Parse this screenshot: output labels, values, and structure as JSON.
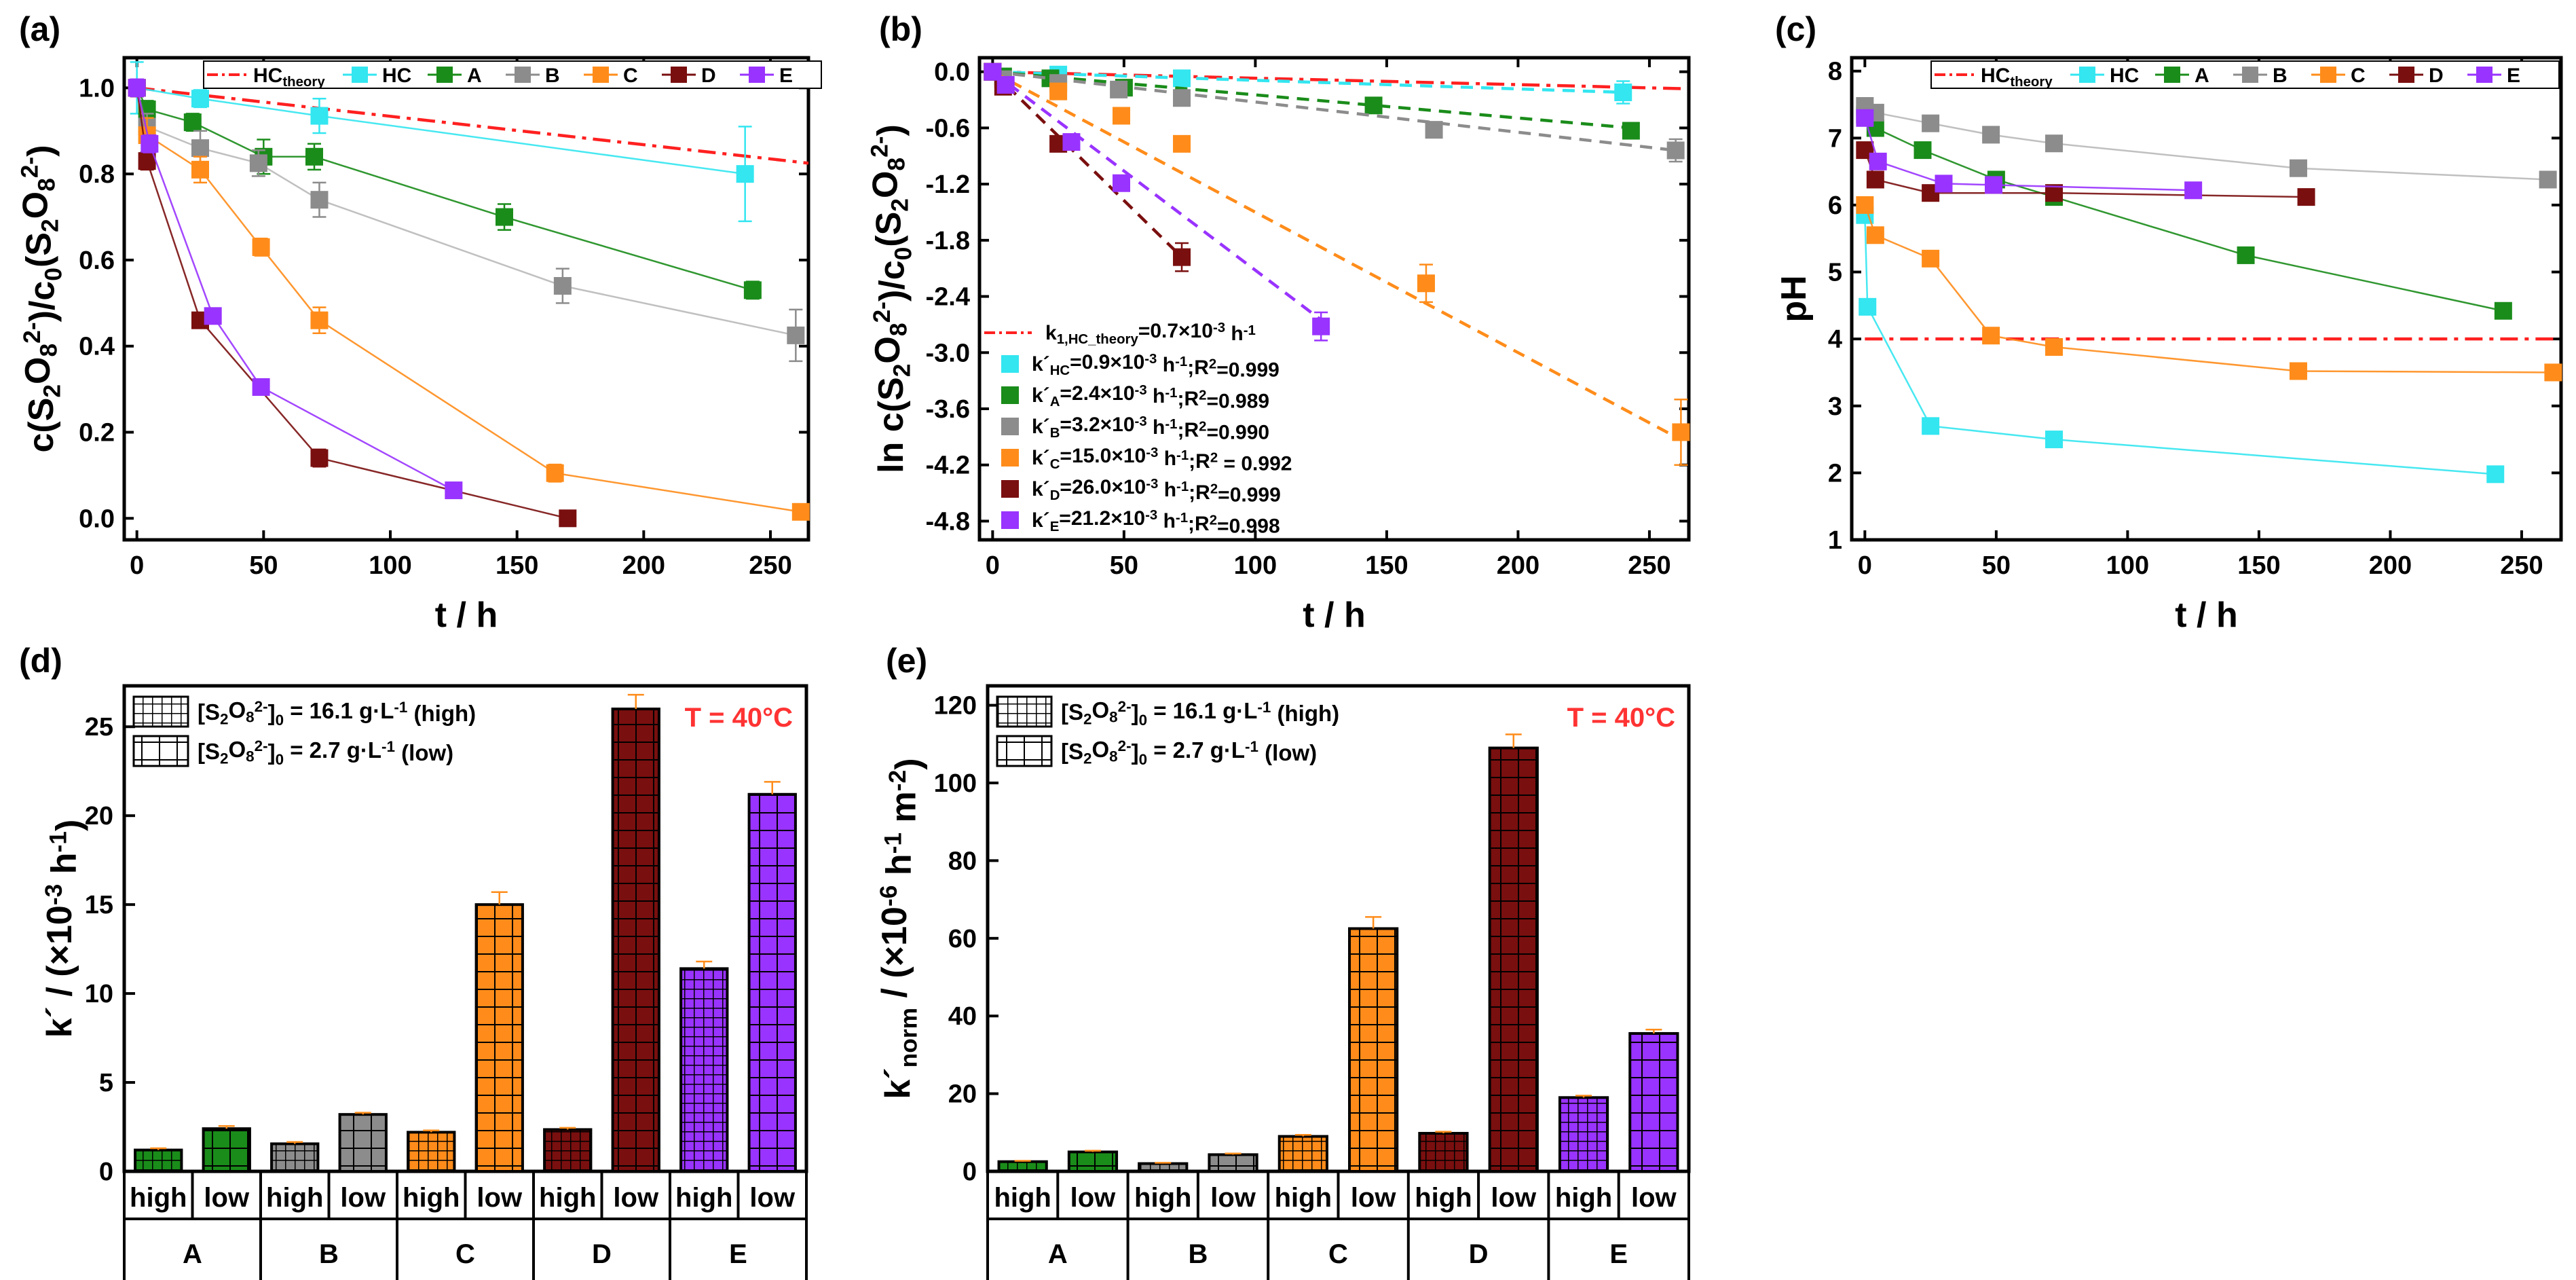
{
  "figure": {
    "panel_labels": [
      "(a)",
      "(b)",
      "(c)",
      "(d)",
      "(e)"
    ],
    "colors": {
      "HC": "#33e6f0",
      "A": "#1a8c1a",
      "B": "#8c8c8c",
      "C": "#ff8c1a",
      "D": "#7a0f0f",
      "E": "#9933ff",
      "theory": "#ff2020"
    }
  },
  "chart_data": [
    {
      "type": "line",
      "panel": "(a)",
      "title": "",
      "xlabel": "t / h",
      "ylabel": "c(S2O8 2-)/c0(S2O8 2-)",
      "xlim": [
        -5,
        265
      ],
      "ylim": [
        -0.05,
        1.07
      ],
      "xticks": [
        0,
        50,
        100,
        150,
        200,
        250
      ],
      "yticks": [
        0.0,
        0.2,
        0.4,
        0.6,
        0.8,
        1.0
      ],
      "ytick_labels": [
        "0.0",
        "0.2",
        "0.4",
        "0.6",
        "0.8",
        "1.0"
      ],
      "legend": [
        "HC_theory",
        "HC",
        "A",
        "B",
        "C",
        "D",
        "E"
      ],
      "series": [
        {
          "name": "HC_theory",
          "style": "dashdot",
          "x": [
            0,
            265
          ],
          "y": [
            1.0,
            0.825
          ]
        },
        {
          "name": "HC",
          "x": [
            0,
            25,
            72,
            240
          ],
          "y": [
            1.0,
            0.975,
            0.935,
            0.8
          ],
          "err": [
            0.06,
            0.02,
            0.04,
            0.11
          ]
        },
        {
          "name": "A",
          "x": [
            0,
            4,
            22,
            50,
            70,
            145,
            243
          ],
          "y": [
            1.0,
            0.95,
            0.92,
            0.84,
            0.84,
            0.7,
            0.53
          ],
          "err": [
            0.02,
            0.02,
            0.02,
            0.04,
            0.03,
            0.03,
            0.02
          ]
        },
        {
          "name": "B",
          "x": [
            0,
            4,
            25,
            48,
            72,
            168,
            260
          ],
          "y": [
            1.0,
            0.91,
            0.86,
            0.825,
            0.74,
            0.54,
            0.425
          ],
          "err": [
            0.02,
            0.03,
            0.04,
            0.03,
            0.04,
            0.04,
            0.06
          ]
        },
        {
          "name": "C",
          "x": [
            0,
            4,
            25,
            49,
            72,
            165,
            262
          ],
          "y": [
            1.0,
            0.89,
            0.81,
            0.63,
            0.46,
            0.105,
            0.015
          ],
          "err": [
            0.02,
            0.04,
            0.03,
            0.02,
            0.03,
            0.02,
            0.01
          ]
        },
        {
          "name": "D",
          "x": [
            0,
            4,
            25,
            72,
            170
          ],
          "y": [
            1.0,
            0.83,
            0.46,
            0.14,
            0.0
          ],
          "err": [
            0.02,
            0.02,
            0.01,
            0.02,
            0.01
          ]
        },
        {
          "name": "E",
          "x": [
            0,
            5,
            30,
            49,
            125
          ],
          "y": [
            1.0,
            0.87,
            0.47,
            0.305,
            0.065
          ],
          "err": [
            0.02,
            0.02,
            0.01,
            0.01,
            0.01
          ]
        }
      ]
    },
    {
      "type": "line",
      "panel": "(b)",
      "title": "",
      "xlabel": "t / h",
      "ylabel": "ln c(S2O8 2-)/c0(S2O8 2-)",
      "xlim": [
        -5,
        265
      ],
      "ylim": [
        -5.0,
        0.15
      ],
      "xticks": [
        0,
        50,
        100,
        150,
        200,
        250
      ],
      "yticks": [
        0.0,
        -0.6,
        -1.2,
        -1.8,
        -2.4,
        -3.0,
        -3.6,
        -4.2,
        -4.8
      ],
      "ytick_labels": [
        "0.0",
        "-0.6",
        "-1.2",
        "-1.8",
        "-2.4",
        "-3.0",
        "-3.6",
        "-4.2",
        "-4.8"
      ],
      "legend": [
        {
          "name": "HC_theory",
          "text": "k1,HC_theory=0.7×10-3 h-1"
        },
        {
          "name": "HC",
          "text": "k´HC=0.9×10-3 h-1;R2=0.999"
        },
        {
          "name": "A",
          "text": "k´A=2.4×10-3 h-1;R2=0.989"
        },
        {
          "name": "B",
          "text": "k´B=3.2×10-3 h-1;R2=0.990"
        },
        {
          "name": "C",
          "text": "k´C=15.0×10-3 h-1;R2 = 0.992"
        },
        {
          "name": "D",
          "text": "k´D=26.0×10-3 h-1;R2=0.999"
        },
        {
          "name": "E",
          "text": "k´E=21.2×10-3 h-1;R2=0.998"
        }
      ],
      "series": [
        {
          "name": "HC_theory",
          "style": "dashdot",
          "x": [
            0,
            262
          ],
          "y": [
            0.0,
            -0.18
          ]
        },
        {
          "name": "HC",
          "x": [
            0,
            25,
            72,
            240
          ],
          "y": [
            0.0,
            -0.03,
            -0.07,
            -0.22
          ],
          "err": [
            0.05,
            0.02,
            0.04,
            0.12
          ],
          "fit": [
            [
              0,
              0.0
            ],
            [
              240,
              -0.22
            ]
          ]
        },
        {
          "name": "A",
          "x": [
            0,
            4,
            22,
            50,
            145,
            243
          ],
          "y": [
            0.0,
            -0.05,
            -0.07,
            -0.17,
            -0.36,
            -0.63
          ],
          "err": [
            0.02,
            0.02,
            0.02,
            0.04,
            0.03,
            0.04
          ],
          "fit": [
            [
              0,
              0.0
            ],
            [
              243,
              -0.6
            ]
          ]
        },
        {
          "name": "B",
          "x": [
            0,
            4,
            25,
            48,
            72,
            168,
            260
          ],
          "y": [
            0.0,
            -0.08,
            -0.12,
            -0.19,
            -0.28,
            -0.62,
            -0.84
          ],
          "err": [
            0.02,
            0.03,
            0.04,
            0.04,
            0.05,
            0.07,
            0.12
          ],
          "fit": [
            [
              0,
              0.0
            ],
            [
              260,
              -0.84
            ]
          ]
        },
        {
          "name": "C",
          "x": [
            0,
            25,
            49,
            72,
            165,
            262
          ],
          "y": [
            0.0,
            -0.21,
            -0.47,
            -0.77,
            -2.26,
            -3.85
          ],
          "err": [
            0.02,
            0.04,
            0.04,
            0.05,
            0.2,
            0.35
          ],
          "fit": [
            [
              0,
              0.0
            ],
            [
              262,
              -3.93
            ]
          ]
        },
        {
          "name": "D",
          "x": [
            0,
            4,
            25,
            72
          ],
          "y": [
            0.0,
            -0.16,
            -0.77,
            -1.98
          ],
          "err": [
            0.02,
            0.03,
            0.03,
            0.15
          ],
          "fit": [
            [
              0,
              0.0
            ],
            [
              72,
              -1.98
            ]
          ]
        },
        {
          "name": "E",
          "x": [
            0,
            5,
            30,
            49,
            125
          ],
          "y": [
            0.0,
            -0.14,
            -0.75,
            -1.19,
            -2.72
          ],
          "err": [
            0.02,
            0.02,
            0.03,
            0.04,
            0.15
          ],
          "fit": [
            [
              0,
              0.0
            ],
            [
              125,
              -2.65
            ]
          ]
        }
      ]
    },
    {
      "type": "line",
      "panel": "(c)",
      "title": "",
      "xlabel": "t / h",
      "ylabel": "pH",
      "xlim": [
        -5,
        265
      ],
      "ylim": [
        1,
        8.2
      ],
      "xticks": [
        0,
        50,
        100,
        150,
        200,
        250
      ],
      "yticks": [
        1,
        2,
        3,
        4,
        5,
        6,
        7,
        8
      ],
      "ytick_labels": [
        "1",
        "2",
        "3",
        "4",
        "5",
        "6",
        "7",
        "8"
      ],
      "legend": [
        "HC_theory",
        "HC",
        "A",
        "B",
        "C",
        "D",
        "E"
      ],
      "series": [
        {
          "name": "HC_theory",
          "style": "dashdot",
          "x": [
            0,
            262
          ],
          "y": [
            4.0,
            4.0
          ]
        },
        {
          "name": "HC",
          "x": [
            0,
            1,
            25,
            72,
            240
          ],
          "y": [
            5.85,
            4.48,
            2.7,
            2.5,
            1.98
          ]
        },
        {
          "name": "A",
          "x": [
            0,
            4,
            22,
            50,
            72,
            145,
            243
          ],
          "y": [
            7.35,
            7.15,
            6.82,
            6.38,
            6.12,
            5.25,
            4.42
          ]
        },
        {
          "name": "B",
          "x": [
            0,
            4,
            25,
            48,
            72,
            165,
            260
          ],
          "y": [
            7.48,
            7.38,
            7.22,
            7.05,
            6.92,
            6.55,
            6.38
          ]
        },
        {
          "name": "C",
          "x": [
            0,
            4,
            25,
            48,
            72,
            165,
            262
          ],
          "y": [
            6.0,
            5.55,
            5.2,
            4.05,
            3.88,
            3.52,
            3.5
          ]
        },
        {
          "name": "D",
          "x": [
            0,
            4,
            25,
            72,
            168
          ],
          "y": [
            6.82,
            6.38,
            6.18,
            6.18,
            6.12
          ]
        },
        {
          "name": "E",
          "x": [
            0,
            5,
            30,
            49,
            125
          ],
          "y": [
            7.3,
            6.65,
            6.32,
            6.3,
            6.22
          ]
        }
      ]
    },
    {
      "type": "bar",
      "panel": "(d)",
      "title": "",
      "annotation": "T = 40°C",
      "xlabel": "",
      "ylabel": "k´ / (×10-3 h-1)",
      "ylim": [
        0,
        27.3
      ],
      "yticks": [
        0,
        5,
        10,
        15,
        20,
        25
      ],
      "ytick_labels": [
        "0",
        "5",
        "10",
        "15",
        "20",
        "25"
      ],
      "categories": [
        "A",
        "B",
        "C",
        "D",
        "E"
      ],
      "subcategories": [
        "high",
        "low"
      ],
      "legend": [
        "[S2O8 2-]0 = 16.1 g·L-1 (high)",
        "[S2O8 2-]0 = 2.7 g·L-1 (low)"
      ],
      "series": [
        {
          "name": "high",
          "values": [
            1.2,
            1.55,
            2.2,
            2.35,
            11.4
          ],
          "err": [
            0.1,
            0.1,
            0.1,
            0.1,
            0.4
          ]
        },
        {
          "name": "low",
          "values": [
            2.4,
            3.2,
            15.0,
            26.0,
            21.2
          ],
          "err": [
            0.15,
            0.1,
            0.7,
            0.8,
            0.7
          ]
        }
      ]
    },
    {
      "type": "bar",
      "panel": "(e)",
      "title": "",
      "annotation": "T = 40°C",
      "xlabel": "",
      "ylabel": "k´norm / (×10-6 h-1 m-2)",
      "ylim": [
        0,
        125
      ],
      "yticks": [
        0,
        20,
        40,
        60,
        80,
        100,
        120
      ],
      "ytick_labels": [
        "0",
        "20",
        "40",
        "60",
        "80",
        "100",
        "120"
      ],
      "categories": [
        "A",
        "B",
        "C",
        "D",
        "E"
      ],
      "subcategories": [
        "high",
        "low"
      ],
      "legend": [
        "[S2O8 2-]0 = 16.1 g·L-1 (high)",
        "[S2O8 2-]0 = 2.7 g·L-1 (low)"
      ],
      "series": [
        {
          "name": "high",
          "values": [
            2.5,
            2.0,
            9.0,
            9.8,
            19.0
          ],
          "err": [
            0.2,
            0.2,
            0.4,
            0.4,
            0.5
          ]
        },
        {
          "name": "low",
          "values": [
            5.0,
            4.3,
            62.5,
            109.0,
            35.5
          ],
          "err": [
            0.3,
            0.3,
            3.0,
            3.5,
            1.0
          ]
        }
      ]
    }
  ]
}
